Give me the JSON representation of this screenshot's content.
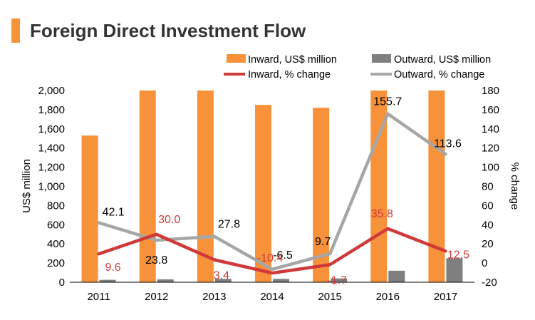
{
  "title": "Foreign Direct Investment Flow",
  "colors": {
    "inward_bar": "#F7923A",
    "outward_bar": "#7F7F7F",
    "inward_line": "#D0393A",
    "outward_line": "#A6A6A6",
    "title_accent": "#F7923A"
  },
  "legend": {
    "inward_bar": "Inward, US$ million",
    "outward_bar": "Outward, US$ million",
    "inward_line": "Inward, % change",
    "outward_line": "Outward, % change"
  },
  "chart_data": {
    "type": "bar",
    "title": "Foreign Direct Investment Flow",
    "categories": [
      "2011",
      "2012",
      "2013",
      "2014",
      "2015",
      "2016",
      "2017"
    ],
    "left_axis": {
      "label": "US$ million",
      "ylim": [
        0,
        2000
      ],
      "ticks": [
        "0",
        "200",
        "400",
        "600",
        "800",
        "1,000",
        "1,200",
        "1,400",
        "1,600",
        "1,800",
        "2,000"
      ]
    },
    "right_axis": {
      "label": "% change",
      "ylim": [
        -20,
        180
      ],
      "ticks": [
        "-20",
        "0",
        "20",
        "40",
        "60",
        "80",
        "100",
        "120",
        "140",
        "160",
        "180"
      ]
    },
    "series": [
      {
        "name": "Inward, US$ million",
        "kind": "bar",
        "axis": "left",
        "values": [
          1530,
          2000,
          2000,
          1850,
          1820,
          2000,
          2000
        ]
      },
      {
        "name": "Outward, US$ million",
        "kind": "bar",
        "axis": "left",
        "values": [
          25,
          30,
          35,
          35,
          40,
          120,
          250
        ]
      },
      {
        "name": "Inward, % change",
        "kind": "line",
        "axis": "right",
        "values": [
          9.6,
          30.0,
          3.4,
          -10.4,
          -1.7,
          35.8,
          12.5
        ],
        "labels": [
          "9.6",
          "30.0",
          "3.4",
          "-10.4",
          "-1.7",
          "35.8",
          "12.5"
        ]
      },
      {
        "name": "Outward, % change",
        "kind": "line",
        "axis": "right",
        "values": [
          42.1,
          23.8,
          27.8,
          -6.5,
          9.7,
          155.7,
          113.6
        ],
        "labels": [
          "42.1",
          "23.8",
          "27.8",
          "-6.5",
          "9.7",
          "155.7",
          "113.6"
        ]
      }
    ]
  }
}
